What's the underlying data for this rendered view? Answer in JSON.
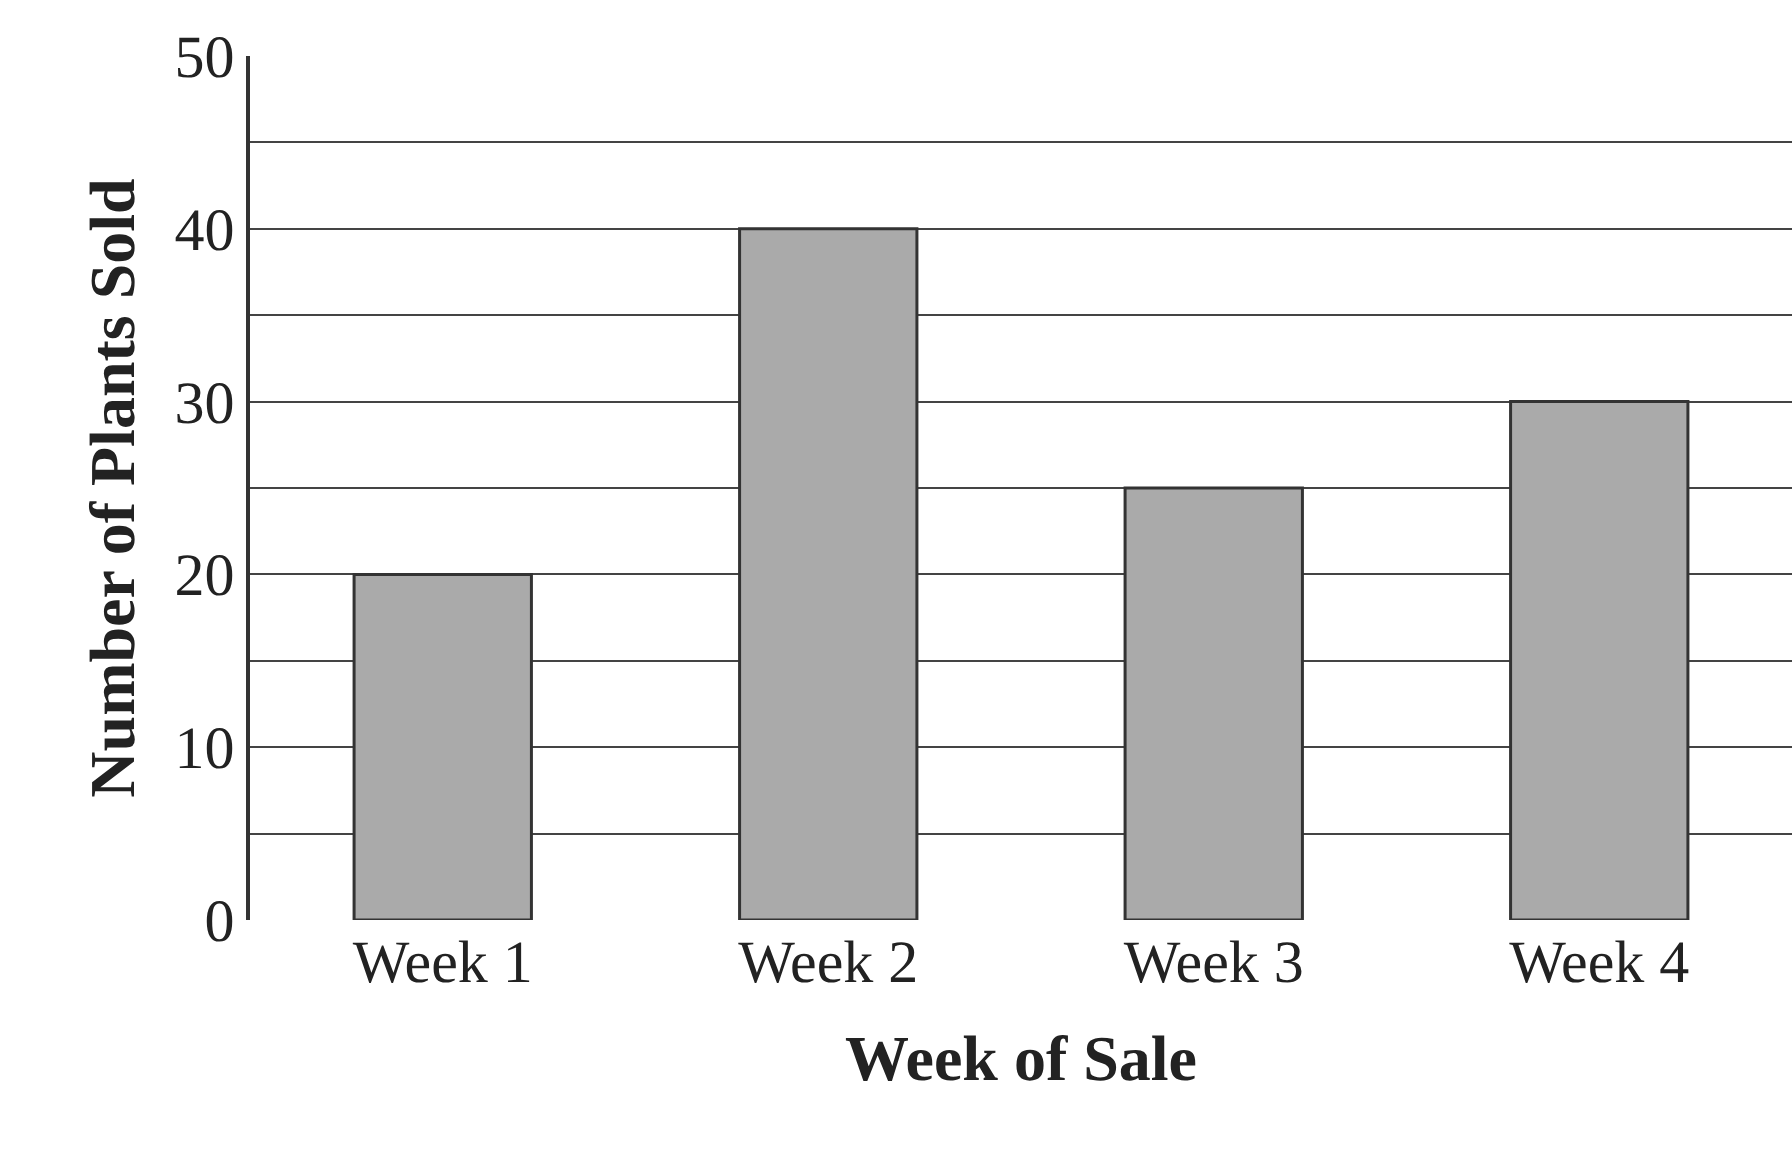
{
  "chart_data": {
    "type": "bar",
    "xlabel": "Week of Sale",
    "ylabel": "Number of Plants Sold",
    "categories": [
      "Week 1",
      "Week 2",
      "Week 3",
      "Week 4"
    ],
    "values": [
      20,
      40,
      25,
      30
    ],
    "color": "#aaaaaa",
    "ylim": [
      0,
      50
    ],
    "yticks": [
      0,
      {
        "value": 5,
        "label": null
      },
      10,
      {
        "value": 15,
        "label": null
      },
      20,
      {
        "value": 25,
        "label": null
      },
      30,
      {
        "value": 35,
        "label": null
      },
      40,
      {
        "value": 45,
        "label": null
      },
      50
    ],
    "grid": true
  }
}
